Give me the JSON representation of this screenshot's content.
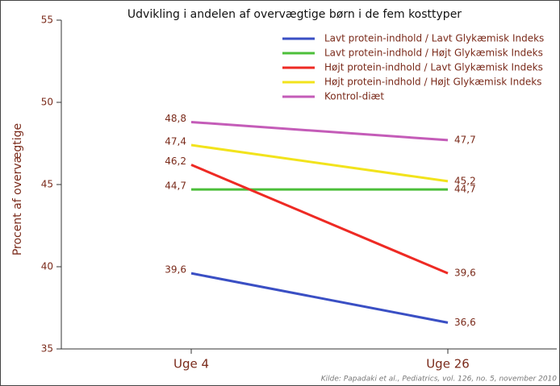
{
  "chart_data": {
    "type": "line",
    "title": "Udvikling i andelen af overvægtige børn i de fem kosttyper",
    "y_label": "Procent af overvægtige",
    "source": "Kilde: Papadaki et al., Pediatrics, vol. 126, no. 5, november 2010",
    "categories": [
      "Uge 4",
      "Uge 26"
    ],
    "ylim": [
      35,
      55
    ],
    "yticks": [
      35,
      40,
      45,
      50,
      55
    ],
    "series": [
      {
        "name": "Lavt protein-indhold / Lavt Glykæmisk Indeks",
        "color": "#3a4fc4",
        "values": [
          39.6,
          36.6
        ],
        "value_labels": [
          "39,6",
          "36,6"
        ]
      },
      {
        "name": "Lavt protein-indhold / Højt Glykæmisk Indeks",
        "color": "#4cbf3a",
        "values": [
          44.7,
          44.7
        ],
        "value_labels": [
          "44,7",
          "44,7"
        ]
      },
      {
        "name": "Højt protein-indhold / Lavt Glykæmisk Indeks",
        "color": "#ee2a24",
        "values": [
          46.2,
          39.6
        ],
        "value_labels": [
          "46,2",
          "39,6"
        ]
      },
      {
        "name": "Højt protein-indhold / Højt Glykæmisk Indeks",
        "color": "#f2e31c",
        "values": [
          47.4,
          45.2
        ],
        "value_labels": [
          "47,4",
          "45,2"
        ]
      },
      {
        "name": "Kontrol-diæt",
        "color": "#c45cb8",
        "values": [
          48.8,
          47.7
        ],
        "value_labels": [
          "48,8",
          "47,7"
        ]
      }
    ]
  }
}
